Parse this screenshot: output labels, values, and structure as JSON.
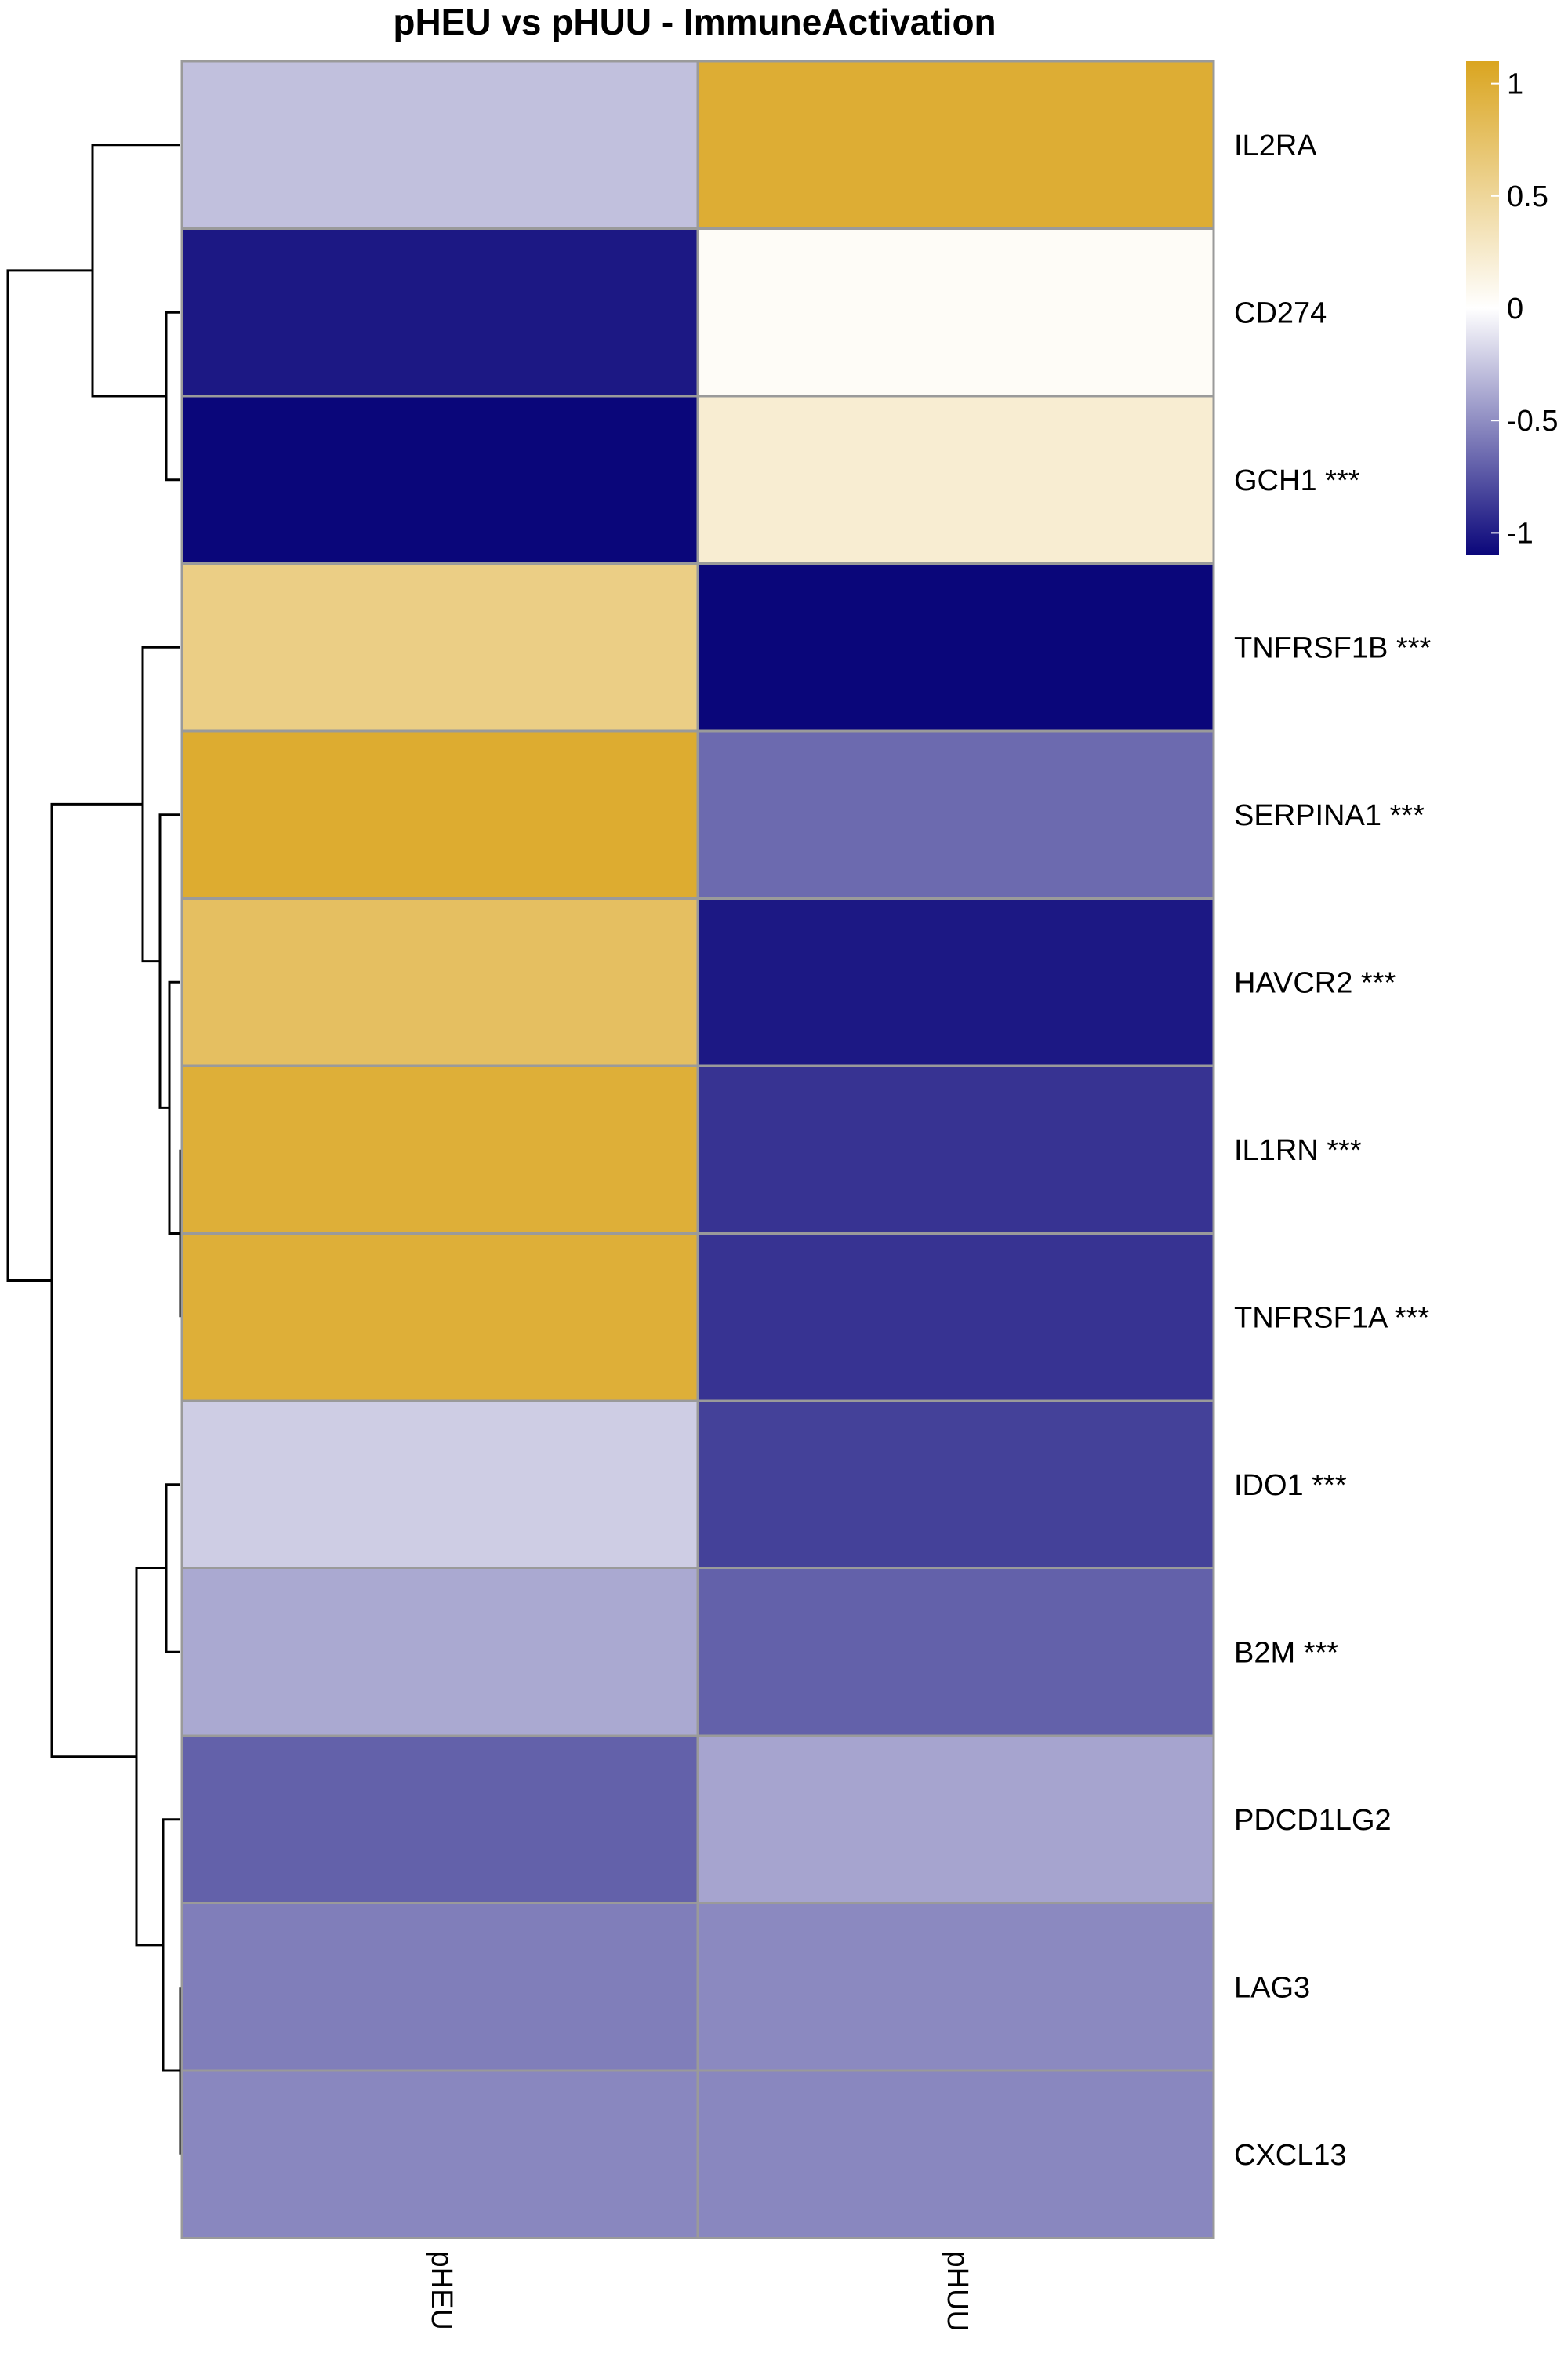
{
  "chart_data": {
    "type": "heatmap",
    "title": "pHEU vs pHUU - ImmuneActivation",
    "columns": [
      "pHEU",
      "pHUU"
    ],
    "rows": [
      {
        "label": "IL2RA",
        "values": [
          -0.28,
          1.0
        ]
      },
      {
        "label": "CD274",
        "values": [
          -1.02,
          0.04
        ]
      },
      {
        "label": "GCH1 ***",
        "values": [
          -1.1,
          0.22
        ]
      },
      {
        "label": "TNFRSF1B ***",
        "values": [
          0.6,
          -1.1
        ]
      },
      {
        "label": "SERPINA1 ***",
        "values": [
          1.02,
          -0.66
        ]
      },
      {
        "label": "HAVCR2 ***",
        "values": [
          0.78,
          -1.02
        ]
      },
      {
        "label": "IL1RN ***",
        "values": [
          0.98,
          -0.9
        ]
      },
      {
        "label": "TNFRSF1A ***",
        "values": [
          0.98,
          -0.9
        ]
      },
      {
        "label": "IDO1 ***",
        "values": [
          -0.22,
          -0.84
        ]
      },
      {
        "label": "B2M ***",
        "values": [
          -0.38,
          -0.7
        ]
      },
      {
        "label": "PDCD1LG2",
        "values": [
          -0.7,
          -0.4
        ]
      },
      {
        "label": "LAG3",
        "values": [
          -0.57,
          -0.52
        ]
      },
      {
        "label": "CXCL13",
        "values": [
          -0.53,
          -0.53
        ]
      }
    ],
    "color_scale": {
      "min": -1.1,
      "max": 1.1,
      "low_color": "#0a067a",
      "mid_color": "#ffffff",
      "high_color": "#daa520",
      "ticks": [
        1,
        0.5,
        0,
        -0.5,
        -1
      ],
      "tick_labels": [
        "1",
        "0.5",
        "0",
        "-0.5",
        "-1"
      ]
    },
    "legend_position": "top-right",
    "row_dendrogram": true
  }
}
